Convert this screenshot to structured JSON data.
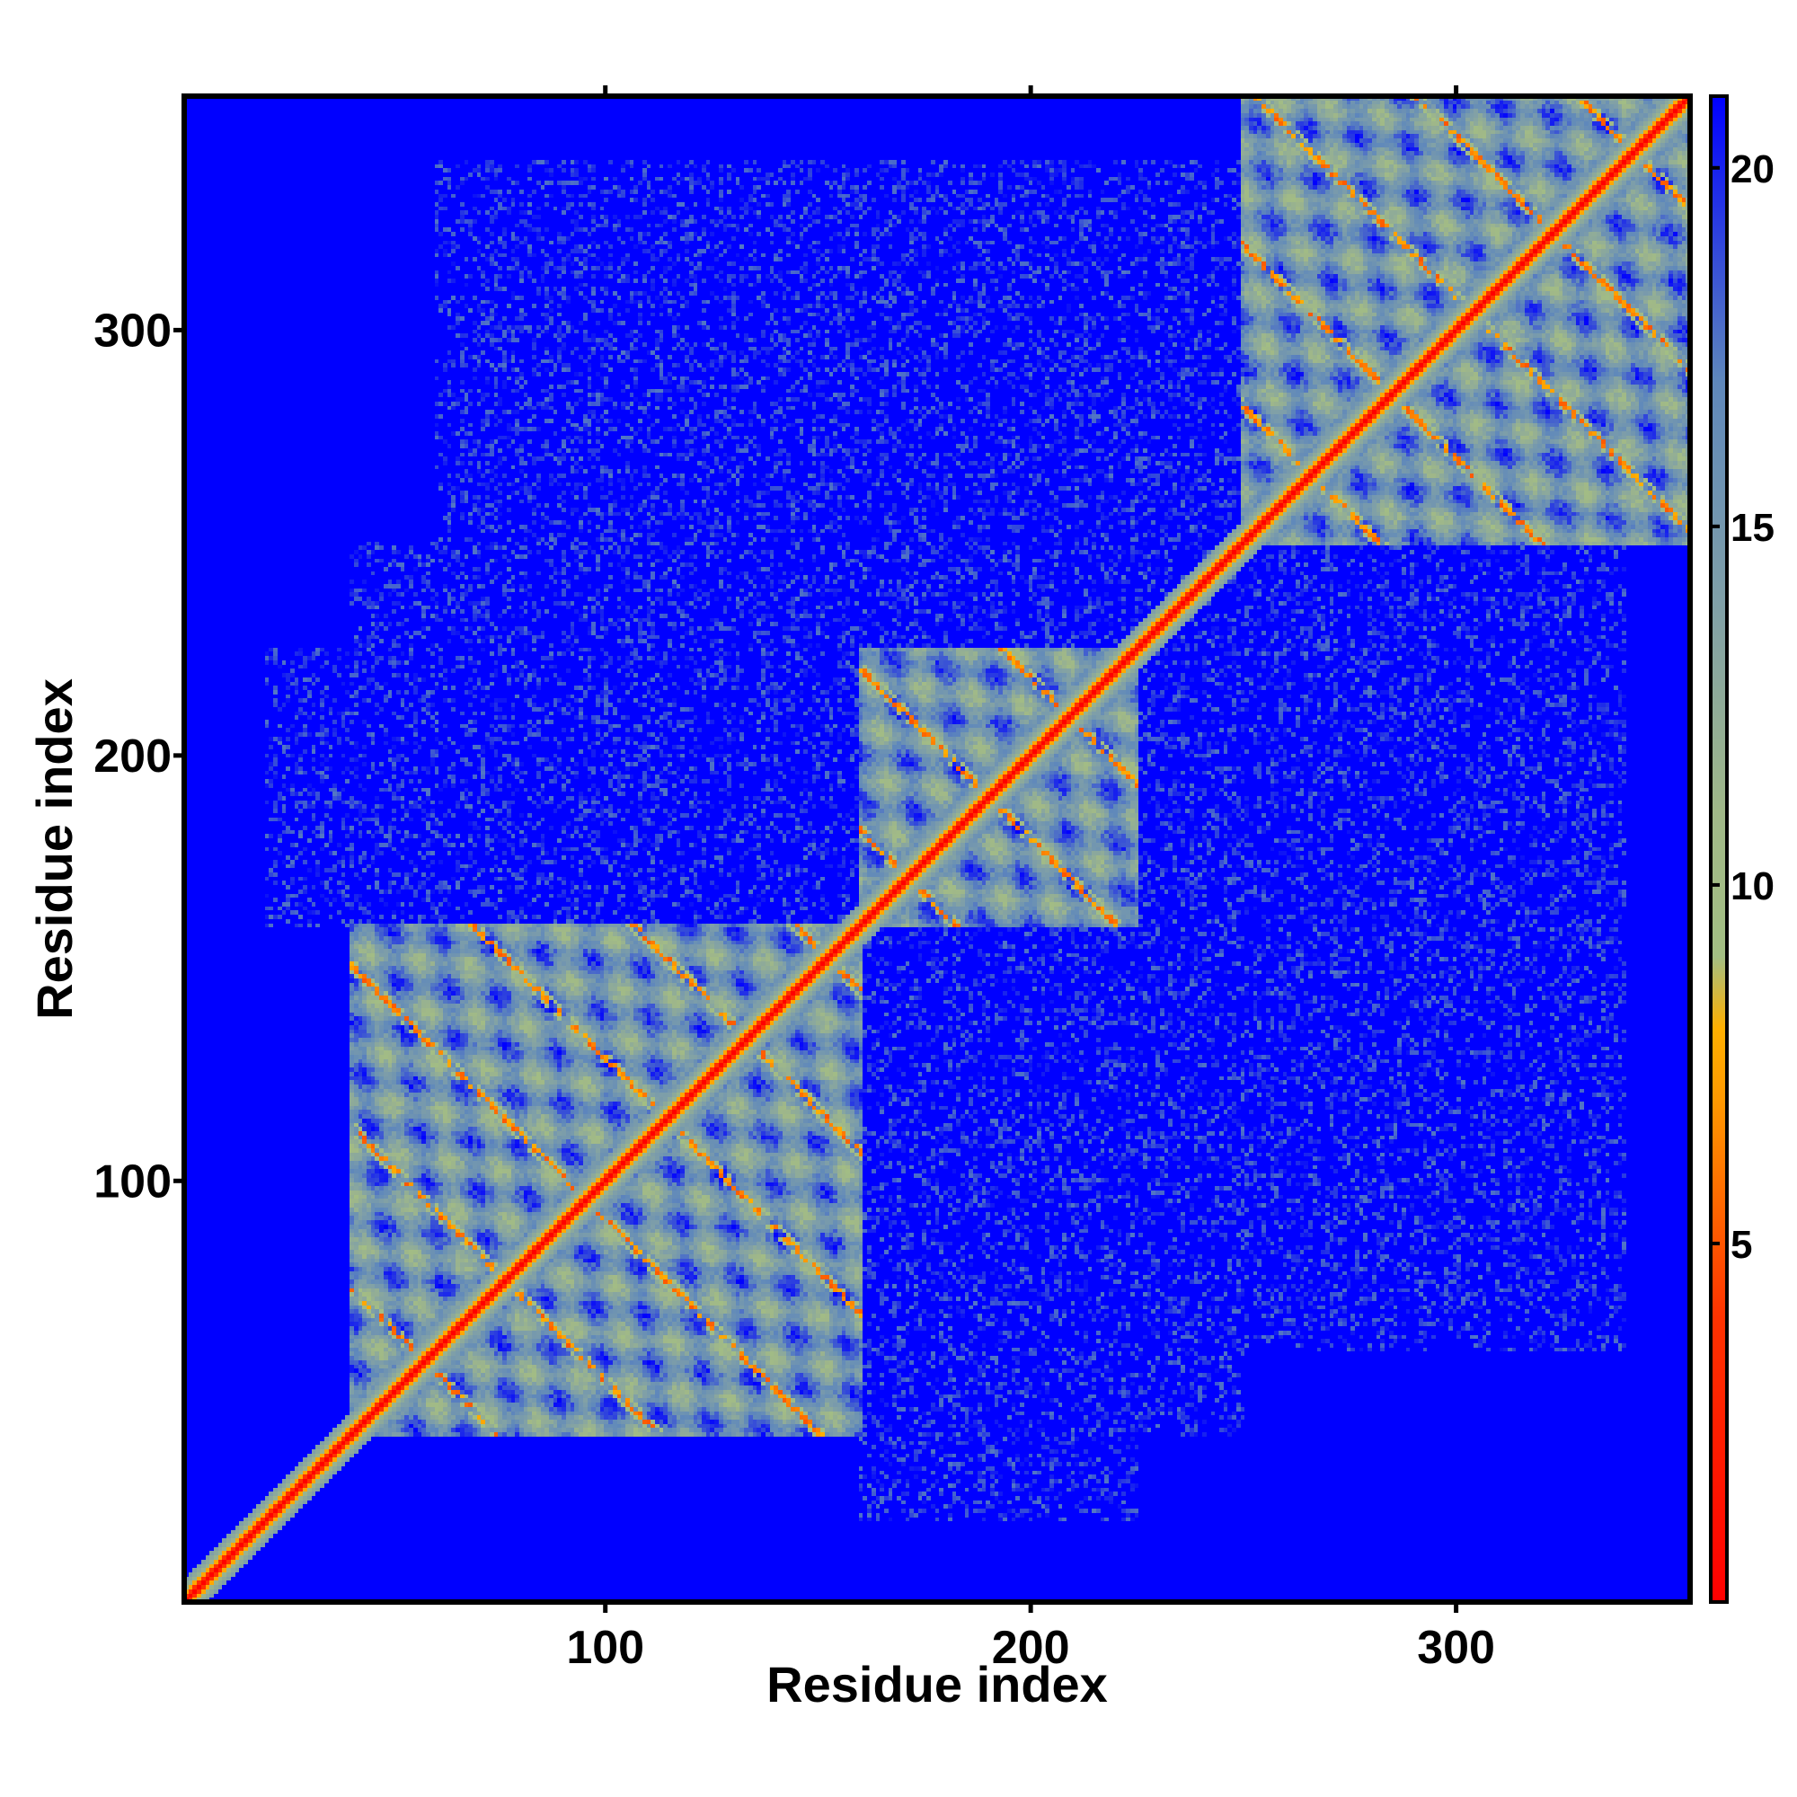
{
  "chart_data": {
    "type": "heatmap",
    "title": "",
    "xlabel": "Residue index",
    "ylabel": "Residue index",
    "n_residues": 355,
    "xlim": [
      1,
      355
    ],
    "ylim": [
      1,
      355
    ],
    "x_ticks": [
      100,
      200,
      300
    ],
    "y_ticks": [
      100,
      200,
      300
    ],
    "colorbar": {
      "range": [
        0,
        21
      ],
      "ticks": [
        5,
        10,
        15,
        20
      ],
      "stops": [
        {
          "value": 0,
          "color": "#ff0000"
        },
        {
          "value": 4,
          "color": "#ff3300"
        },
        {
          "value": 7,
          "color": "#ff9900"
        },
        {
          "value": 8,
          "color": "#ffb000"
        },
        {
          "value": 9,
          "color": "#a3bf83"
        },
        {
          "value": 11,
          "color": "#a0b888"
        },
        {
          "value": 14,
          "color": "#7f9fa8"
        },
        {
          "value": 17,
          "color": "#5f88bb"
        },
        {
          "value": 21,
          "color": "#0000ff"
        }
      ],
      "cutoff_color": "#0000ff"
    },
    "diagonal": "distance 0 on the main diagonal (red band)",
    "domains": [
      {
        "range": [
          40,
          160
        ],
        "description": "large beta-rich domain block with off-diagonal red/orange strand pairings"
      },
      {
        "range": [
          160,
          225
        ],
        "description": "middle domain block"
      },
      {
        "range": [
          250,
          355
        ],
        "description": "C-terminal domain block"
      }
    ],
    "inter_domain_patches": [
      {
        "x": [
          20,
          160
        ],
        "y": [
          160,
          225
        ]
      },
      {
        "x": [
          60,
          260
        ],
        "y": [
          210,
          340
        ]
      },
      {
        "x": [
          160,
          250
        ],
        "y": [
          40,
          100
        ]
      },
      {
        "x": [
          230,
          330
        ],
        "y": [
          60,
          200
        ]
      }
    ],
    "grid": false,
    "legend": "colorbar on right"
  }
}
